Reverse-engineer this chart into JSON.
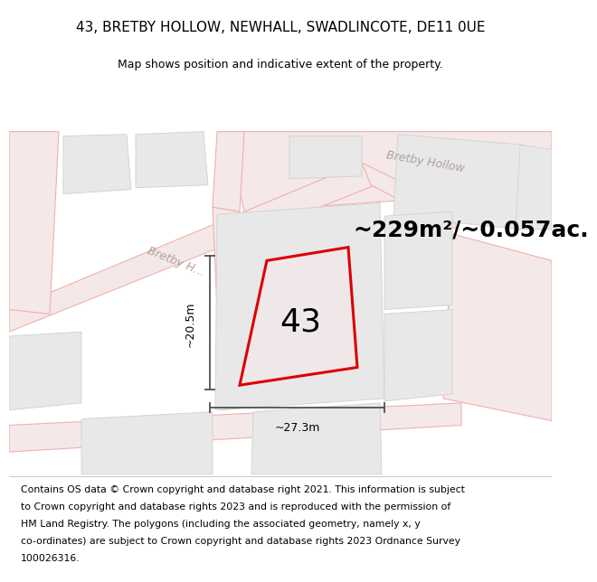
{
  "title": "43, BRETBY HOLLOW, NEWHALL, SWADLINCOTE, DE11 0UE",
  "subtitle": "Map shows position and indicative extent of the property.",
  "area_text": "~229m²/~0.057ac.",
  "width_label": "~27.3m",
  "height_label": "~20.5m",
  "number_label": "43",
  "footer_lines": [
    "Contains OS data © Crown copyright and database right 2021. This information is subject",
    "to Crown copyright and database rights 2023 and is reproduced with the permission of",
    "HM Land Registry. The polygons (including the associated geometry, namely x, y",
    "co-ordinates) are subject to Crown copyright and database rights 2023 Ordnance Survey",
    "100026316."
  ],
  "map_bg": "#ffffff",
  "road_fill": "#f5e8e8",
  "road_edge": "#f0b0b0",
  "block_fill": "#e8e8e8",
  "block_edge": "#d0d0d0",
  "property_fill": "#f0e8e8",
  "highlight_color": "#dd0000",
  "dim_line_color": "#444444",
  "road_label_color": "#b0a0a0",
  "title_fontsize": 11,
  "subtitle_fontsize": 9,
  "area_fontsize": 18,
  "number_fontsize": 26,
  "footer_fontsize": 7.8,
  "road_label_fontsize": 9
}
